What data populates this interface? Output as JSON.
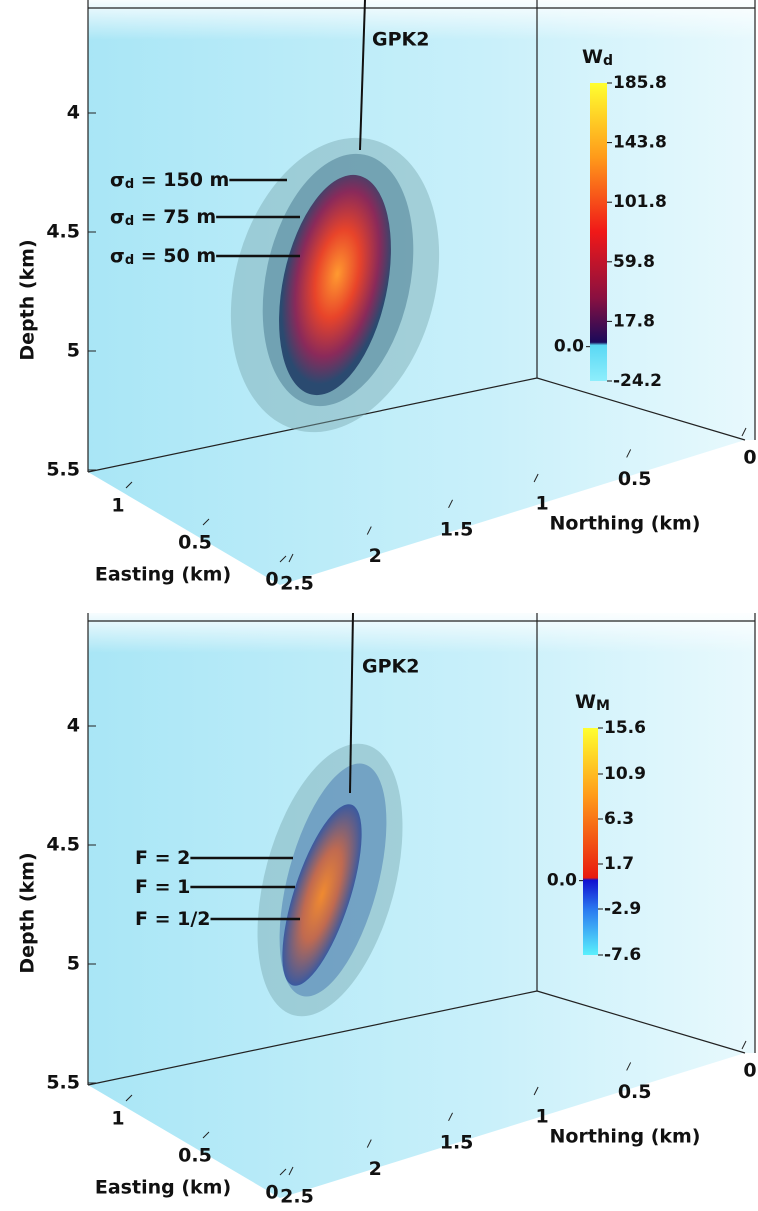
{
  "panels": [
    {
      "well_label": "GPK2",
      "colorbar": {
        "title": "W",
        "title_sub": "d",
        "lim": [
          -24.2,
          185.8
        ],
        "ticks": [
          185.8,
          143.8,
          101.8,
          59.8,
          17.8,
          {
            "value": 0,
            "label": "0.0"
          },
          -24.2
        ]
      },
      "contour_labels": [
        {
          "symbol": "σ",
          "sub": "d",
          "text": " = 150 m"
        },
        {
          "symbol": "σ",
          "sub": "d",
          "text": " = 75 m"
        },
        {
          "symbol": "σ",
          "sub": "d",
          "text": " = 50 m"
        }
      ],
      "depth_axis": {
        "title": "Depth (km)",
        "lim": [
          4,
          5.5
        ],
        "ticks": [
          4,
          4.5,
          5,
          5.5
        ]
      },
      "easting_axis": {
        "title": "Easting (km)",
        "lim": [
          0,
          1
        ],
        "ticks": [
          1,
          0.5,
          0
        ]
      },
      "northing_axis": {
        "title": "Northing (km)",
        "lim": [
          0,
          2.5
        ],
        "ticks": [
          0,
          0.5,
          1,
          1.5,
          2,
          2.5
        ]
      }
    },
    {
      "well_label": "GPK2",
      "colorbar": {
        "title": "W",
        "title_sub": "M",
        "lim": [
          -7.6,
          15.6
        ],
        "ticks": [
          15.6,
          10.9,
          6.3,
          1.7,
          {
            "value": 0,
            "label": "0.0"
          },
          -2.9,
          -7.6
        ]
      },
      "contour_labels": [
        {
          "text": "F = 2"
        },
        {
          "text": "F = 1"
        },
        {
          "text": "F = 1/2"
        }
      ],
      "depth_axis": {
        "title": "Depth (km)",
        "lim": [
          4,
          5.5
        ],
        "ticks": [
          4,
          4.5,
          5,
          5.5
        ]
      },
      "easting_axis": {
        "title": "Easting (km)",
        "lim": [
          0,
          1
        ],
        "ticks": [
          1,
          0.5,
          0
        ]
      },
      "northing_axis": {
        "title": "Northing (km)",
        "lim": [
          0,
          2.5
        ],
        "ticks": [
          0,
          0.5,
          1,
          1.5,
          2,
          2.5
        ]
      }
    }
  ]
}
